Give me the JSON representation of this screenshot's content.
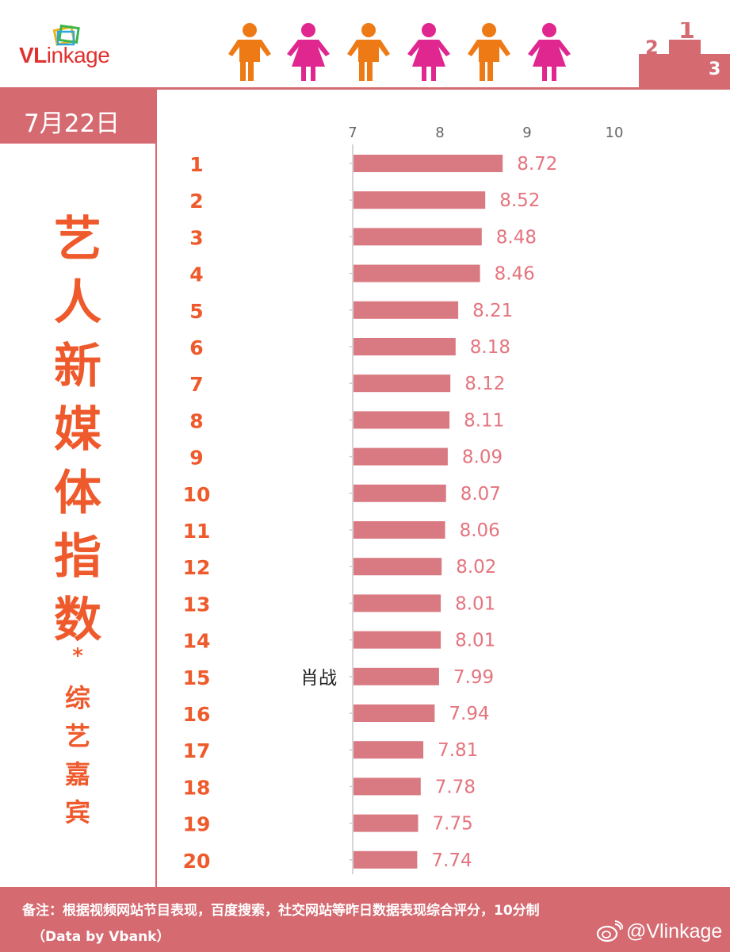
{
  "header": {
    "logo_bold": "VL",
    "logo_rest": "inkage",
    "icons": [
      "male-person-icon",
      "female-person-icon",
      "male-person-icon",
      "female-person-icon",
      "male-person-icon",
      "female-person-icon",
      "podium-icon"
    ]
  },
  "date": "7月22日",
  "title": {
    "chars": [
      "艺",
      "人",
      "新",
      "媒",
      "体",
      "指",
      "数"
    ],
    "star": "*",
    "sub_chars": [
      "综",
      "艺",
      "嘉",
      "宾"
    ]
  },
  "chart_data": {
    "type": "bar",
    "orientation": "horizontal",
    "categories": [
      "1",
      "2",
      "3",
      "4",
      "5",
      "6",
      "7",
      "8",
      "9",
      "10",
      "11",
      "12",
      "13",
      "14",
      "15",
      "16",
      "17",
      "18",
      "19",
      "20"
    ],
    "values": [
      8.72,
      8.52,
      8.48,
      8.46,
      8.21,
      8.18,
      8.12,
      8.11,
      8.09,
      8.07,
      8.06,
      8.02,
      8.01,
      8.01,
      7.99,
      7.94,
      7.81,
      7.78,
      7.75,
      7.74
    ],
    "x_ticks": [
      "7",
      "8",
      "9",
      "10"
    ],
    "xlim": [
      7,
      10
    ],
    "highlight_label": {
      "rank": "15",
      "text": "肖战"
    },
    "bar_color": "#d97a82",
    "label_color": "#e4747e",
    "rank_color": "#ee5a2c",
    "grid": false,
    "legend": "none"
  },
  "footer": {
    "note": "备注：根据视频网站节目表现，百度搜索，社交网站等昨日数据表现综合评分，10分制",
    "source": "（Data by Vbank）",
    "weibo": "@Vlinkage"
  },
  "colors": {
    "accent": "#d56a71",
    "title_orange": "#ee5a2c",
    "male": "#ee7a16",
    "female": "#e0268f"
  }
}
